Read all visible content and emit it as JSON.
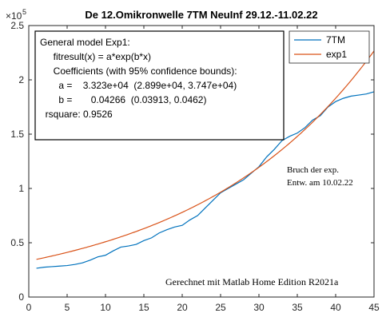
{
  "chart_data": {
    "type": "line",
    "title": "De 12.Omikronwelle 7TM NeuInf 29.12.-11.02.22",
    "xlabel": "",
    "ylabel": "",
    "xlim": [
      0,
      45
    ],
    "ylim": [
      0,
      250000
    ],
    "xticks": [
      0,
      5,
      10,
      15,
      20,
      25,
      30,
      35,
      40,
      45
    ],
    "yticks": [
      0,
      50000,
      100000,
      150000,
      200000,
      250000
    ],
    "ytick_labels": [
      "0",
      "0.5",
      "1",
      "1.5",
      "2",
      "2.5"
    ],
    "y_exponent_base": "×10",
    "y_exponent_power": "5",
    "grid": false,
    "legend_position": "top-right",
    "series": [
      {
        "name": "7TM",
        "color": "#0072BD",
        "x": [
          1,
          2,
          3,
          4,
          5,
          6,
          7,
          8,
          9,
          10,
          11,
          12,
          13,
          14,
          15,
          16,
          17,
          18,
          19,
          20,
          21,
          22,
          23,
          24,
          25,
          26,
          27,
          28,
          29,
          30,
          31,
          32,
          33,
          34,
          35,
          36,
          37,
          38,
          39,
          40,
          41,
          42,
          43,
          44,
          45
        ],
        "values": [
          26500,
          27500,
          28000,
          28500,
          29000,
          30000,
          31500,
          34000,
          37000,
          38500,
          42500,
          46000,
          47000,
          48500,
          52000,
          54500,
          59000,
          62000,
          64500,
          66000,
          71000,
          75000,
          82000,
          89000,
          96000,
          100000,
          104000,
          108000,
          114000,
          120000,
          129000,
          136000,
          144000,
          148000,
          151000,
          156000,
          163000,
          167000,
          175000,
          180000,
          183000,
          185000,
          186000,
          187000,
          189000
        ]
      },
      {
        "name": "exp1",
        "color": "#D95319",
        "fit_a": 33230,
        "fit_b": 0.04266
      }
    ]
  },
  "annotations": {
    "fit_box": [
      "General model Exp1:",
      "     fitresult(x) = a*exp(b*x)",
      "     Coefficients (with 95% confidence bounds):",
      "       a =    3.323e+04  (2.899e+04, 3.747e+04)",
      "       b =       0.04266  (0.03913, 0.0462)",
      "  rsquare: 0.9526"
    ],
    "note_break_line1": "Bruch der exp.",
    "note_break_line2": "Entw. am 10.02.22",
    "note_software": "Gerechnet mit Matlab Home Edition R2021a"
  }
}
